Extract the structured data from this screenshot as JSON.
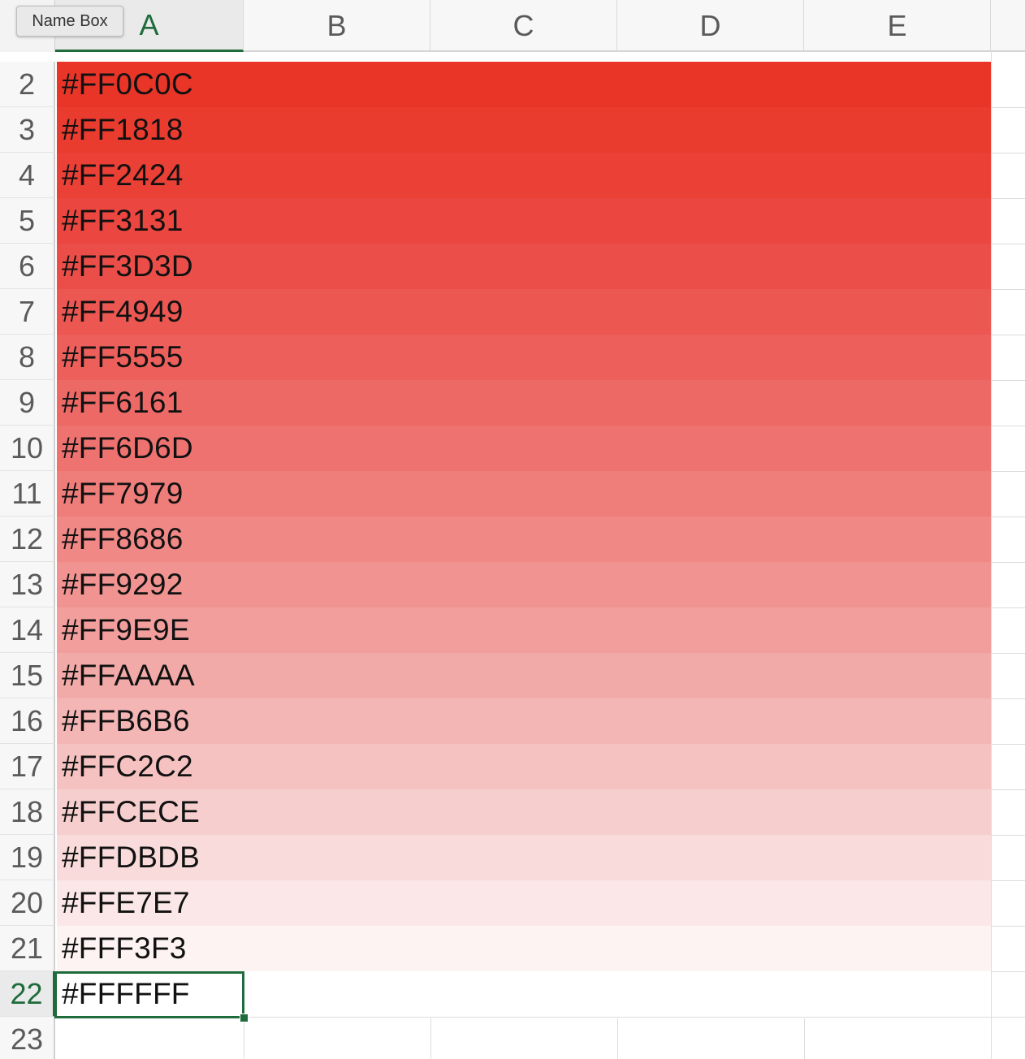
{
  "name_box": {
    "label": "Name Box"
  },
  "columns": [
    {
      "label": "A",
      "active": true
    },
    {
      "label": "B",
      "active": false
    },
    {
      "label": "C",
      "active": false
    },
    {
      "label": "D",
      "active": false
    },
    {
      "label": "E",
      "active": false
    }
  ],
  "rows": [
    {
      "num": "2",
      "value": "#FF0C0C",
      "fill": "#E93528"
    },
    {
      "num": "3",
      "value": "#FF1818",
      "fill": "#EA3B2F"
    },
    {
      "num": "4",
      "value": "#FF2424",
      "fill": "#EA4036"
    },
    {
      "num": "5",
      "value": "#FF3131",
      "fill": "#EB463F"
    },
    {
      "num": "6",
      "value": "#FF3D3D",
      "fill": "#EB4E48"
    },
    {
      "num": "7",
      "value": "#FF4949",
      "fill": "#EC5752"
    },
    {
      "num": "8",
      "value": "#FF5555",
      "fill": "#EC5F5B"
    },
    {
      "num": "9",
      "value": "#FF6161",
      "fill": "#ED6966"
    },
    {
      "num": "10",
      "value": "#FF6D6D",
      "fill": "#EE7370"
    },
    {
      "num": "11",
      "value": "#FF7979",
      "fill": "#EF7D7A"
    },
    {
      "num": "12",
      "value": "#FF8686",
      "fill": "#F08886"
    },
    {
      "num": "13",
      "value": "#FF9292",
      "fill": "#F09391"
    },
    {
      "num": "14",
      "value": "#FF9E9E",
      "fill": "#F19E9D"
    },
    {
      "num": "15",
      "value": "#FFAAAA",
      "fill": "#F2AAA8"
    },
    {
      "num": "16",
      "value": "#FFB6B6",
      "fill": "#F4B6B5"
    },
    {
      "num": "17",
      "value": "#FFC2C2",
      "fill": "#F5C2C1"
    },
    {
      "num": "18",
      "value": "#FFCECE",
      "fill": "#F7CECE"
    },
    {
      "num": "19",
      "value": "#FFDBDB",
      "fill": "#F9DBDB"
    },
    {
      "num": "20",
      "value": "#FFE7E7",
      "fill": "#FBE7E7"
    },
    {
      "num": "21",
      "value": "#FFF3F3",
      "fill": "#FDF3F3"
    },
    {
      "num": "22",
      "value": "#FFFFFF",
      "fill": "#FFFFFF",
      "active": true
    },
    {
      "num": "23",
      "value": "",
      "fill": "#FFFFFF"
    }
  ],
  "colors": {
    "accent": "#1E6B3C",
    "header_bg": "#F7F7F7",
    "gridline": "#DCDCDC"
  }
}
